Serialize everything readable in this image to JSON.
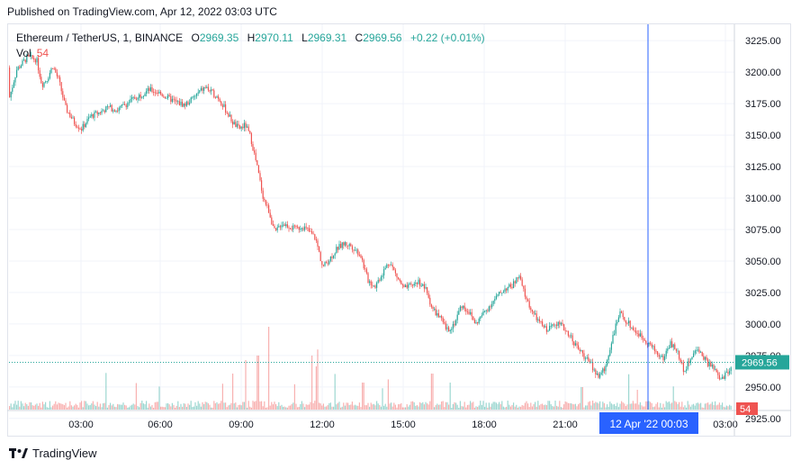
{
  "published": "Published on TradingView.com, Apr 12, 2022 03:03 UTC",
  "legend": {
    "symbol": "Ethereum / TetherUS, 1, BINANCE",
    "o_label": "O",
    "o": "2969.35",
    "h_label": "H",
    "h": "2970.11",
    "l_label": "L",
    "l": "2969.31",
    "c_label": "C",
    "c": "2969.56",
    "change": "+0.22 (+0.01%)"
  },
  "volume": {
    "label": "Vol",
    "value": "54"
  },
  "brand": "TradingView",
  "colors": {
    "up": "#26a69a",
    "down": "#ef5350",
    "crosshair": "#2962ff",
    "grid": "#f0f3fa"
  },
  "chart_data": {
    "type": "candlestick",
    "interval": "1",
    "ylim": [
      2932,
      3238
    ],
    "y_ticks": [
      "3225.00",
      "3200.00",
      "3175.00",
      "3150.00",
      "3125.00",
      "3100.00",
      "3075.00",
      "3050.00",
      "3025.00",
      "3000.00",
      "2975.00",
      "2950.00",
      "2925.00"
    ],
    "x_ticks": [
      "03:00",
      "06:00",
      "09:00",
      "12:00",
      "15:00",
      "18:00",
      "21:00",
      "03:00"
    ],
    "last_price": "2969.56",
    "last_volume": "54",
    "crosshair_label": "12 Apr '22   00:03",
    "price_path": [
      [
        0,
        3180
      ],
      [
        8,
        3202
      ],
      [
        20,
        3212
      ],
      [
        30,
        3210
      ],
      [
        36,
        3190
      ],
      [
        42,
        3195
      ],
      [
        48,
        3205
      ],
      [
        55,
        3193
      ],
      [
        62,
        3172
      ],
      [
        72,
        3160
      ],
      [
        80,
        3155
      ],
      [
        90,
        3165
      ],
      [
        100,
        3168
      ],
      [
        110,
        3172
      ],
      [
        120,
        3170
      ],
      [
        130,
        3175
      ],
      [
        140,
        3180
      ],
      [
        148,
        3183
      ],
      [
        155,
        3186
      ],
      [
        165,
        3184
      ],
      [
        175,
        3180
      ],
      [
        185,
        3176
      ],
      [
        195,
        3174
      ],
      [
        205,
        3180
      ],
      [
        212,
        3185
      ],
      [
        218,
        3188
      ],
      [
        224,
        3184
      ],
      [
        232,
        3180
      ],
      [
        240,
        3170
      ],
      [
        248,
        3160
      ],
      [
        255,
        3155
      ],
      [
        262,
        3158
      ],
      [
        268,
        3148
      ],
      [
        275,
        3125
      ],
      [
        282,
        3100
      ],
      [
        288,
        3090
      ],
      [
        295,
        3072
      ],
      [
        302,
        3080
      ],
      [
        310,
        3078
      ],
      [
        318,
        3075
      ],
      [
        325,
        3078
      ],
      [
        332,
        3074
      ],
      [
        340,
        3068
      ],
      [
        348,
        3045
      ],
      [
        356,
        3052
      ],
      [
        364,
        3060
      ],
      [
        372,
        3064
      ],
      [
        380,
        3062
      ],
      [
        390,
        3055
      ],
      [
        398,
        3035
      ],
      [
        406,
        3030
      ],
      [
        414,
        3040
      ],
      [
        422,
        3050
      ],
      [
        430,
        3038
      ],
      [
        438,
        3028
      ],
      [
        446,
        3030
      ],
      [
        454,
        3034
      ],
      [
        462,
        3028
      ],
      [
        470,
        3012
      ],
      [
        478,
        3005
      ],
      [
        486,
        2995
      ],
      [
        494,
        3000
      ],
      [
        502,
        3015
      ],
      [
        510,
        3010
      ],
      [
        518,
        3000
      ],
      [
        526,
        3008
      ],
      [
        534,
        3015
      ],
      [
        542,
        3022
      ],
      [
        550,
        3028
      ],
      [
        558,
        3030
      ],
      [
        566,
        3038
      ],
      [
        574,
        3020
      ],
      [
        582,
        3008
      ],
      [
        590,
        3000
      ],
      [
        598,
        2995
      ],
      [
        606,
        3002
      ],
      [
        614,
        2998
      ],
      [
        622,
        2992
      ],
      [
        630,
        2982
      ],
      [
        638,
        2975
      ],
      [
        646,
        2968
      ],
      [
        654,
        2958
      ],
      [
        662,
        2965
      ],
      [
        670,
        2990
      ],
      [
        678,
        3008
      ],
      [
        686,
        3002
      ],
      [
        694,
        2995
      ],
      [
        702,
        2990
      ],
      [
        710,
        2985
      ],
      [
        718,
        2978
      ],
      [
        726,
        2972
      ],
      [
        734,
        2985
      ],
      [
        742,
        2978
      ],
      [
        750,
        2962
      ],
      [
        758,
        2975
      ],
      [
        766,
        2980
      ],
      [
        774,
        2970
      ],
      [
        782,
        2965
      ],
      [
        790,
        2955
      ],
      [
        798,
        2962
      ],
      [
        806,
        2968
      ]
    ]
  }
}
